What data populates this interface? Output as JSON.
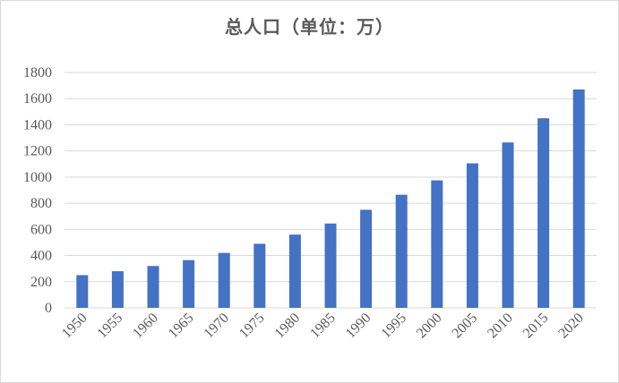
{
  "chart_data": {
    "type": "bar",
    "title": "总人口（单位：万）",
    "xlabel": "",
    "ylabel": "",
    "categories": [
      "1950",
      "1955",
      "1960",
      "1965",
      "1970",
      "1975",
      "1980",
      "1985",
      "1990",
      "1995",
      "2000",
      "2005",
      "2010",
      "2015",
      "2020"
    ],
    "values": [
      250,
      280,
      320,
      365,
      420,
      490,
      560,
      645,
      750,
      865,
      975,
      1105,
      1265,
      1450,
      1670
    ],
    "ylim": [
      0,
      1800
    ],
    "yticks": [
      "0",
      "200",
      "400",
      "600",
      "800",
      "1000",
      "1200",
      "1400",
      "1600",
      "1800"
    ],
    "grid": true,
    "legend": "none",
    "bar_color": "#4472c4",
    "grid_color": "#d9d9d9"
  }
}
